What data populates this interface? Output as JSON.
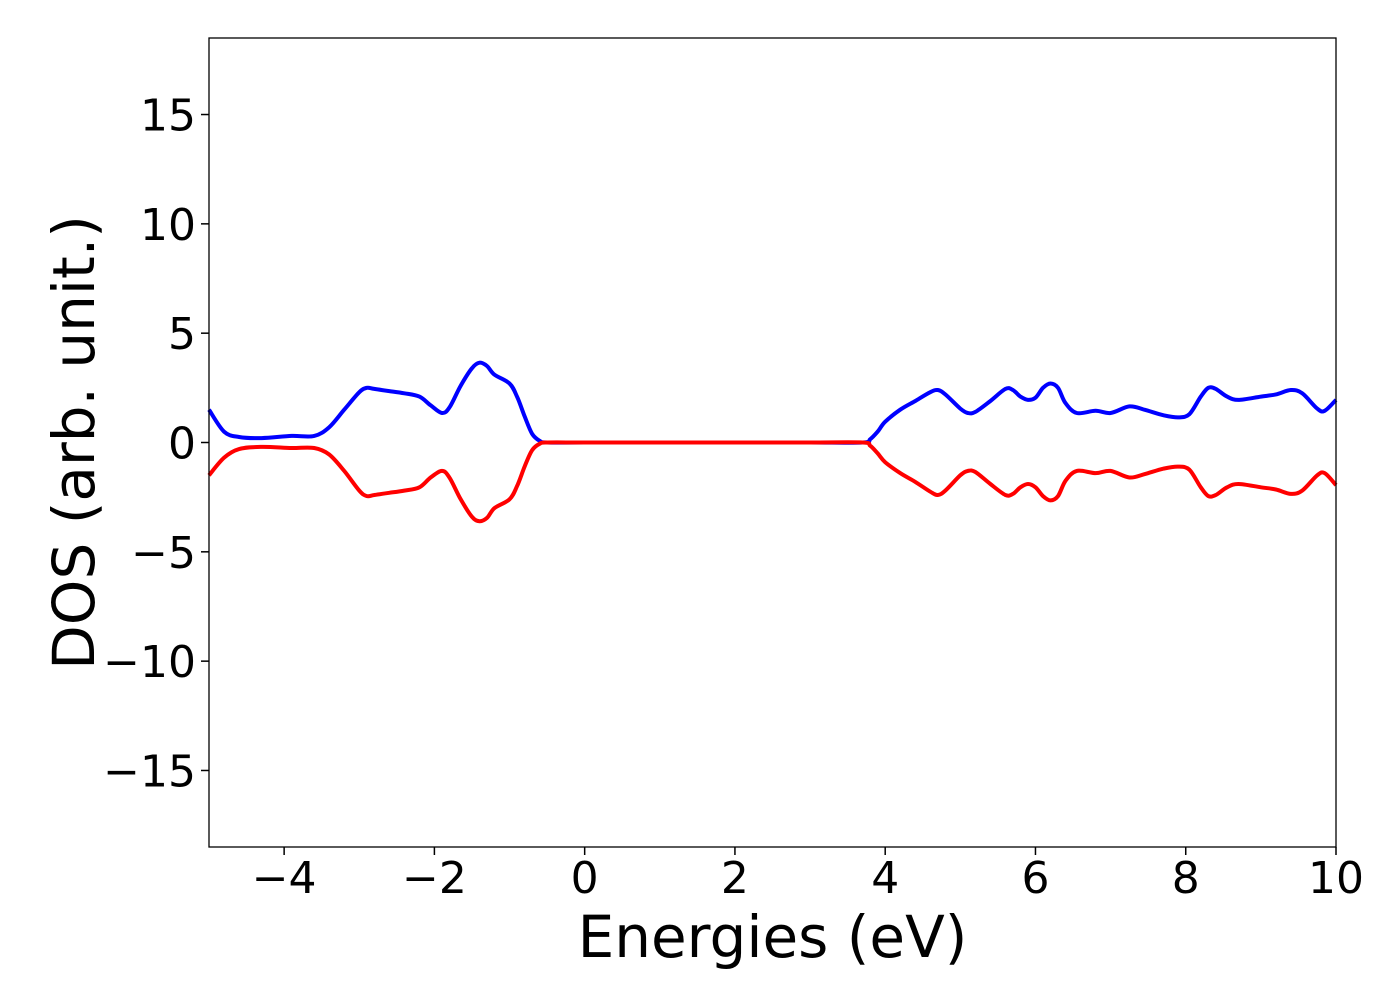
{
  "chart_data": {
    "type": "line",
    "xlabel": "Energies (eV)",
    "ylabel": "DOS (arb. unit.)",
    "xlim": [
      -5,
      10
    ],
    "ylim": [
      -18.5,
      18.5
    ],
    "x_ticks": [
      -4,
      -2,
      0,
      2,
      4,
      6,
      8,
      10
    ],
    "y_ticks": [
      -15,
      -10,
      -5,
      0,
      5,
      10,
      15
    ],
    "grid": false,
    "legend": "none",
    "series": [
      {
        "color": "#0000ff",
        "points": [
          [
            -5.0,
            1.5
          ],
          [
            -4.8,
            0.5
          ],
          [
            -4.6,
            0.25
          ],
          [
            -4.3,
            0.2
          ],
          [
            -3.9,
            0.3
          ],
          [
            -3.6,
            0.3
          ],
          [
            -3.4,
            0.7
          ],
          [
            -3.2,
            1.5
          ],
          [
            -3.0,
            2.3
          ],
          [
            -2.9,
            2.5
          ],
          [
            -2.8,
            2.45
          ],
          [
            -2.6,
            2.35
          ],
          [
            -2.4,
            2.25
          ],
          [
            -2.2,
            2.1
          ],
          [
            -2.05,
            1.7
          ],
          [
            -1.9,
            1.35
          ],
          [
            -1.8,
            1.6
          ],
          [
            -1.65,
            2.6
          ],
          [
            -1.5,
            3.4
          ],
          [
            -1.4,
            3.65
          ],
          [
            -1.3,
            3.5
          ],
          [
            -1.2,
            3.1
          ],
          [
            -1.0,
            2.7
          ],
          [
            -0.9,
            2.1
          ],
          [
            -0.8,
            1.2
          ],
          [
            -0.7,
            0.4
          ],
          [
            -0.6,
            0.08
          ],
          [
            -0.5,
            0.0
          ],
          [
            0.0,
            0.0
          ],
          [
            1.0,
            0.0
          ],
          [
            2.0,
            0.0
          ],
          [
            3.0,
            0.0
          ],
          [
            3.7,
            0.0
          ],
          [
            3.8,
            0.15
          ],
          [
            3.9,
            0.5
          ],
          [
            4.0,
            0.95
          ],
          [
            4.2,
            1.5
          ],
          [
            4.4,
            1.9
          ],
          [
            4.6,
            2.3
          ],
          [
            4.7,
            2.4
          ],
          [
            4.8,
            2.2
          ],
          [
            5.0,
            1.55
          ],
          [
            5.1,
            1.35
          ],
          [
            5.2,
            1.4
          ],
          [
            5.4,
            1.9
          ],
          [
            5.6,
            2.45
          ],
          [
            5.7,
            2.4
          ],
          [
            5.8,
            2.1
          ],
          [
            5.9,
            1.95
          ],
          [
            6.0,
            2.05
          ],
          [
            6.1,
            2.5
          ],
          [
            6.2,
            2.7
          ],
          [
            6.3,
            2.5
          ],
          [
            6.4,
            1.8
          ],
          [
            6.55,
            1.35
          ],
          [
            6.8,
            1.45
          ],
          [
            7.0,
            1.35
          ],
          [
            7.25,
            1.65
          ],
          [
            7.45,
            1.5
          ],
          [
            7.7,
            1.25
          ],
          [
            7.9,
            1.15
          ],
          [
            8.05,
            1.3
          ],
          [
            8.2,
            2.1
          ],
          [
            8.3,
            2.5
          ],
          [
            8.4,
            2.45
          ],
          [
            8.55,
            2.1
          ],
          [
            8.7,
            1.95
          ],
          [
            9.0,
            2.1
          ],
          [
            9.2,
            2.2
          ],
          [
            9.4,
            2.4
          ],
          [
            9.55,
            2.25
          ],
          [
            9.75,
            1.55
          ],
          [
            9.85,
            1.45
          ],
          [
            10.0,
            1.95
          ]
        ]
      },
      {
        "color": "#ff0000",
        "points": [
          [
            -5.0,
            -1.5
          ],
          [
            -4.8,
            -0.7
          ],
          [
            -4.6,
            -0.3
          ],
          [
            -4.3,
            -0.2
          ],
          [
            -3.9,
            -0.25
          ],
          [
            -3.6,
            -0.25
          ],
          [
            -3.4,
            -0.55
          ],
          [
            -3.2,
            -1.3
          ],
          [
            -3.0,
            -2.2
          ],
          [
            -2.9,
            -2.45
          ],
          [
            -2.8,
            -2.4
          ],
          [
            -2.6,
            -2.3
          ],
          [
            -2.4,
            -2.2
          ],
          [
            -2.2,
            -2.05
          ],
          [
            -2.05,
            -1.6
          ],
          [
            -1.9,
            -1.3
          ],
          [
            -1.8,
            -1.6
          ],
          [
            -1.65,
            -2.6
          ],
          [
            -1.5,
            -3.4
          ],
          [
            -1.4,
            -3.6
          ],
          [
            -1.3,
            -3.45
          ],
          [
            -1.2,
            -3.0
          ],
          [
            -1.0,
            -2.6
          ],
          [
            -0.9,
            -2.0
          ],
          [
            -0.8,
            -1.1
          ],
          [
            -0.7,
            -0.35
          ],
          [
            -0.6,
            -0.06
          ],
          [
            -0.5,
            0.0
          ],
          [
            0.0,
            0.0
          ],
          [
            1.0,
            0.0
          ],
          [
            2.0,
            0.0
          ],
          [
            3.0,
            0.0
          ],
          [
            3.7,
            0.0
          ],
          [
            3.8,
            -0.15
          ],
          [
            3.9,
            -0.5
          ],
          [
            4.0,
            -0.9
          ],
          [
            4.2,
            -1.4
          ],
          [
            4.4,
            -1.8
          ],
          [
            4.6,
            -2.25
          ],
          [
            4.7,
            -2.4
          ],
          [
            4.8,
            -2.2
          ],
          [
            5.0,
            -1.5
          ],
          [
            5.1,
            -1.3
          ],
          [
            5.2,
            -1.35
          ],
          [
            5.4,
            -1.9
          ],
          [
            5.6,
            -2.4
          ],
          [
            5.7,
            -2.35
          ],
          [
            5.8,
            -2.05
          ],
          [
            5.9,
            -1.9
          ],
          [
            6.0,
            -2.05
          ],
          [
            6.1,
            -2.45
          ],
          [
            6.2,
            -2.65
          ],
          [
            6.3,
            -2.45
          ],
          [
            6.4,
            -1.75
          ],
          [
            6.55,
            -1.3
          ],
          [
            6.8,
            -1.4
          ],
          [
            7.0,
            -1.3
          ],
          [
            7.25,
            -1.6
          ],
          [
            7.45,
            -1.45
          ],
          [
            7.7,
            -1.2
          ],
          [
            7.9,
            -1.1
          ],
          [
            8.05,
            -1.25
          ],
          [
            8.2,
            -2.05
          ],
          [
            8.3,
            -2.45
          ],
          [
            8.4,
            -2.4
          ],
          [
            8.55,
            -2.05
          ],
          [
            8.7,
            -1.9
          ],
          [
            9.0,
            -2.05
          ],
          [
            9.2,
            -2.15
          ],
          [
            9.4,
            -2.35
          ],
          [
            9.55,
            -2.2
          ],
          [
            9.75,
            -1.5
          ],
          [
            9.85,
            -1.4
          ],
          [
            10.0,
            -1.95
          ]
        ]
      }
    ]
  }
}
